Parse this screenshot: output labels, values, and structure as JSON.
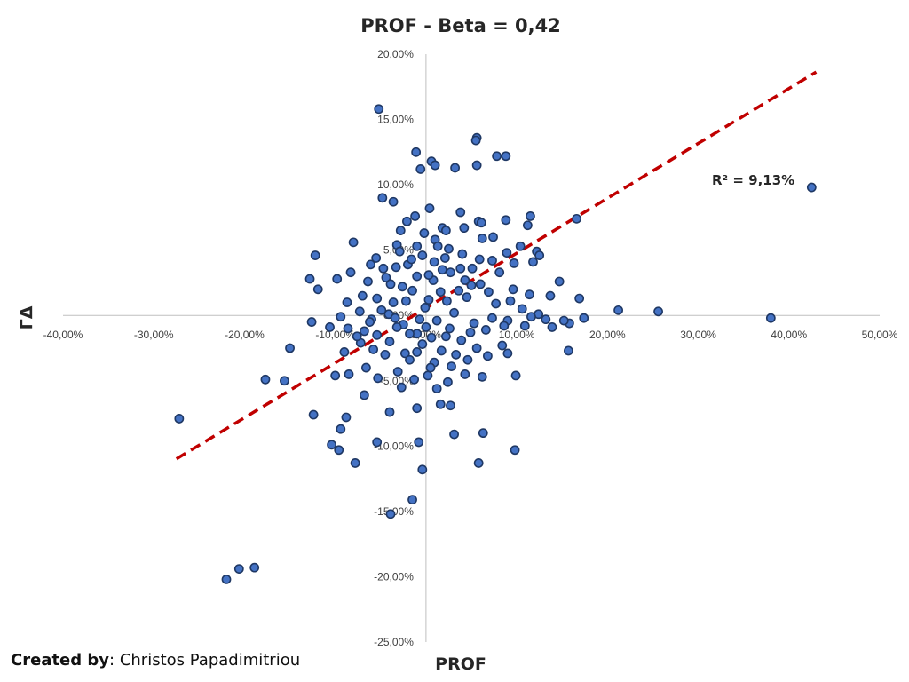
{
  "credit": {
    "label": "Created by",
    "separator": ": ",
    "name": "Christos Papadimitriou"
  },
  "chart_data": {
    "type": "scatter",
    "title": "PROF - Beta = 0,42",
    "xlabel": "PROF",
    "ylabel": "ΓΔ",
    "xlim": [
      -40,
      50
    ],
    "ylim": [
      -25,
      20
    ],
    "x_ticks": [
      -40,
      -30,
      -20,
      -10,
      0,
      10,
      20,
      30,
      40,
      50
    ],
    "y_ticks": [
      20,
      15,
      10,
      5,
      0,
      -5,
      -10,
      -15,
      -20,
      -25
    ],
    "x_tick_labels": [
      "-40,00%",
      "-30,00%",
      "-20,00%",
      "-10,00%",
      "0,00%",
      "10,00%",
      "20,00%",
      "30,00%",
      "40,00%",
      "50,00%"
    ],
    "y_tick_labels": [
      "20,00%",
      "15,00%",
      "10,00%",
      "5,00%",
      "0,00%",
      "-5,00%",
      "-10,00%",
      "-15,00%",
      "-20,00%",
      "-25,00%"
    ],
    "grid": false,
    "point_color": "#4472C4",
    "point_edge_color": "#1F3864",
    "trendline": {
      "type": "linear",
      "style": "dashed",
      "color": "#C00000",
      "x_range": [
        -27.5,
        43
      ],
      "slope": 0.42,
      "intercept": 0.57,
      "label": "R² = 9,13%"
    },
    "points": [
      [
        -5.2,
        15.8
      ],
      [
        -1.1,
        12.5
      ],
      [
        0.6,
        11.8
      ],
      [
        1.0,
        11.5
      ],
      [
        -0.6,
        11.2
      ],
      [
        3.2,
        11.3
      ],
      [
        5.6,
        13.6
      ],
      [
        5.5,
        13.4
      ],
      [
        7.8,
        12.2
      ],
      [
        8.8,
        12.2
      ],
      [
        5.6,
        11.5
      ],
      [
        -4.8,
        9.0
      ],
      [
        -3.6,
        8.7
      ],
      [
        0.4,
        8.2
      ],
      [
        42.5,
        9.8
      ],
      [
        1.8,
        6.7
      ],
      [
        -1.2,
        7.6
      ],
      [
        -2.1,
        7.2
      ],
      [
        3.8,
        7.9
      ],
      [
        5.8,
        7.2
      ],
      [
        6.1,
        7.1
      ],
      [
        8.8,
        7.3
      ],
      [
        11.5,
        7.6
      ],
      [
        11.2,
        6.9
      ],
      [
        16.6,
        7.4
      ],
      [
        -2.8,
        6.5
      ],
      [
        -0.2,
        6.3
      ],
      [
        2.2,
        6.5
      ],
      [
        4.2,
        6.7
      ],
      [
        6.2,
        5.9
      ],
      [
        7.4,
        6.0
      ],
      [
        10.4,
        5.3
      ],
      [
        12.2,
        4.9
      ],
      [
        12.5,
        4.6
      ],
      [
        14.7,
        2.6
      ],
      [
        -12.2,
        4.6
      ],
      [
        -8.0,
        5.6
      ],
      [
        -5.5,
        4.4
      ],
      [
        -3.2,
        5.4
      ],
      [
        -1.0,
        5.3
      ],
      [
        1.0,
        5.8
      ],
      [
        2.5,
        5.1
      ],
      [
        4.0,
        4.7
      ],
      [
        5.9,
        4.3
      ],
      [
        7.3,
        4.2
      ],
      [
        8.9,
        4.8
      ],
      [
        9.7,
        4.0
      ],
      [
        11.8,
        4.1
      ],
      [
        -9.8,
        2.8
      ],
      [
        -8.3,
        3.3
      ],
      [
        -6.4,
        2.6
      ],
      [
        -4.4,
        2.9
      ],
      [
        -2.6,
        2.2
      ],
      [
        -1.0,
        3.0
      ],
      [
        0.8,
        2.7
      ],
      [
        2.7,
        3.3
      ],
      [
        4.3,
        2.7
      ],
      [
        6.0,
        2.4
      ],
      [
        8.1,
        3.3
      ],
      [
        9.6,
        2.0
      ],
      [
        11.4,
        1.6
      ],
      [
        13.7,
        1.5
      ],
      [
        -12.8,
        2.8
      ],
      [
        -11.9,
        2.0
      ],
      [
        -8.7,
        1.0
      ],
      [
        -7.0,
        1.5
      ],
      [
        -5.4,
        1.3
      ],
      [
        -3.6,
        1.0
      ],
      [
        -1.5,
        1.9
      ],
      [
        0.3,
        1.2
      ],
      [
        2.3,
        1.1
      ],
      [
        4.5,
        1.4
      ],
      [
        6.9,
        1.8
      ],
      [
        9.3,
        1.1
      ],
      [
        10.6,
        0.5
      ],
      [
        12.4,
        0.1
      ],
      [
        16.9,
        1.3
      ],
      [
        21.2,
        0.4
      ],
      [
        25.6,
        0.3
      ],
      [
        38.0,
        -0.2
      ],
      [
        -9.4,
        -0.1
      ],
      [
        -7.3,
        0.3
      ],
      [
        -6.0,
        -0.3
      ],
      [
        -4.1,
        0.1
      ],
      [
        -2.5,
        -0.7
      ],
      [
        -0.7,
        -0.3
      ],
      [
        1.2,
        -0.4
      ],
      [
        3.1,
        0.2
      ],
      [
        5.3,
        -0.6
      ],
      [
        7.3,
        -0.2
      ],
      [
        9.0,
        -0.4
      ],
      [
        11.6,
        -0.1
      ],
      [
        13.2,
        -0.3
      ],
      [
        15.8,
        -0.6
      ],
      [
        17.4,
        -0.2
      ],
      [
        -12.6,
        -0.5
      ],
      [
        -10.6,
        -0.9
      ],
      [
        -8.6,
        -1.0
      ],
      [
        -6.8,
        -1.2
      ],
      [
        -5.4,
        -1.5
      ],
      [
        -3.2,
        -0.9
      ],
      [
        -1.0,
        -1.4
      ],
      [
        0.6,
        -1.7
      ],
      [
        2.6,
        -1.0
      ],
      [
        4.9,
        -1.3
      ],
      [
        6.6,
        -1.1
      ],
      [
        8.6,
        -0.8
      ],
      [
        10.9,
        -0.8
      ],
      [
        13.9,
        -0.9
      ],
      [
        15.2,
        -0.4
      ],
      [
        -15.0,
        -2.5
      ],
      [
        -9.0,
        -2.8
      ],
      [
        -7.2,
        -2.1
      ],
      [
        -5.8,
        -2.6
      ],
      [
        -4.0,
        -2.0
      ],
      [
        -2.3,
        -2.9
      ],
      [
        -0.4,
        -2.2
      ],
      [
        1.7,
        -2.7
      ],
      [
        3.3,
        -3.0
      ],
      [
        5.6,
        -2.5
      ],
      [
        8.4,
        -2.3
      ],
      [
        9.0,
        -2.9
      ],
      [
        15.7,
        -2.7
      ],
      [
        -17.7,
        -4.9
      ],
      [
        -15.6,
        -5.0
      ],
      [
        -10.0,
        -4.6
      ],
      [
        -8.5,
        -4.5
      ],
      [
        -6.6,
        -4.0
      ],
      [
        -5.3,
        -4.8
      ],
      [
        -3.1,
        -4.3
      ],
      [
        -1.3,
        -4.9
      ],
      [
        0.2,
        -4.6
      ],
      [
        2.4,
        -5.1
      ],
      [
        4.3,
        -4.5
      ],
      [
        6.2,
        -4.7
      ],
      [
        9.9,
        -4.6
      ],
      [
        -8.8,
        -7.8
      ],
      [
        -6.8,
        -6.1
      ],
      [
        -4.0,
        -7.4
      ],
      [
        -1.0,
        -7.1
      ],
      [
        1.6,
        -6.8
      ],
      [
        2.7,
        -6.9
      ],
      [
        -12.4,
        -7.6
      ],
      [
        -9.4,
        -8.7
      ],
      [
        -10.4,
        -9.9
      ],
      [
        -9.6,
        -10.3
      ],
      [
        -7.8,
        -11.3
      ],
      [
        -5.4,
        -9.7
      ],
      [
        -0.8,
        -9.7
      ],
      [
        6.3,
        -9.0
      ],
      [
        3.1,
        -9.1
      ],
      [
        9.8,
        -10.3
      ],
      [
        5.8,
        -11.3
      ],
      [
        -0.4,
        -11.8
      ],
      [
        -1.5,
        -14.1
      ],
      [
        -3.9,
        -15.2
      ],
      [
        -27.2,
        -7.9
      ],
      [
        -18.9,
        -19.3
      ],
      [
        -20.6,
        -19.4
      ],
      [
        -22.0,
        -20.2
      ],
      [
        -4.7,
        3.6
      ],
      [
        -3.9,
        2.4
      ],
      [
        -2.0,
        3.9
      ],
      [
        -0.4,
        4.6
      ],
      [
        0.9,
        4.1
      ],
      [
        1.8,
        3.5
      ],
      [
        3.8,
        3.6
      ],
      [
        -4.9,
        0.4
      ],
      [
        -2.2,
        1.1
      ],
      [
        -0.1,
        0.6
      ],
      [
        1.6,
        1.8
      ],
      [
        3.6,
        1.9
      ],
      [
        5.0,
        2.3
      ],
      [
        -3.4,
        -0.2
      ],
      [
        -1.8,
        -1.4
      ],
      [
        0.0,
        -0.9
      ],
      [
        2.2,
        -1.6
      ],
      [
        3.9,
        -1.9
      ],
      [
        -4.5,
        -3.0
      ],
      [
        -1.8,
        -3.4
      ],
      [
        0.9,
        -3.6
      ],
      [
        2.8,
        -3.9
      ],
      [
        4.6,
        -3.4
      ],
      [
        -2.7,
        -5.5
      ],
      [
        1.2,
        -5.6
      ],
      [
        -1.6,
        4.3
      ],
      [
        0.3,
        3.1
      ],
      [
        -2.9,
        4.9
      ],
      [
        1.3,
        5.3
      ],
      [
        -3.3,
        3.7
      ],
      [
        2.1,
        4.4
      ],
      [
        -1.0,
        -2.8
      ],
      [
        0.5,
        -4.0
      ],
      [
        -6.2,
        -0.5
      ],
      [
        6.8,
        -3.1
      ],
      [
        5.1,
        3.6
      ],
      [
        -6.1,
        3.9
      ],
      [
        7.7,
        0.9
      ],
      [
        -7.6,
        -1.6
      ]
    ]
  }
}
